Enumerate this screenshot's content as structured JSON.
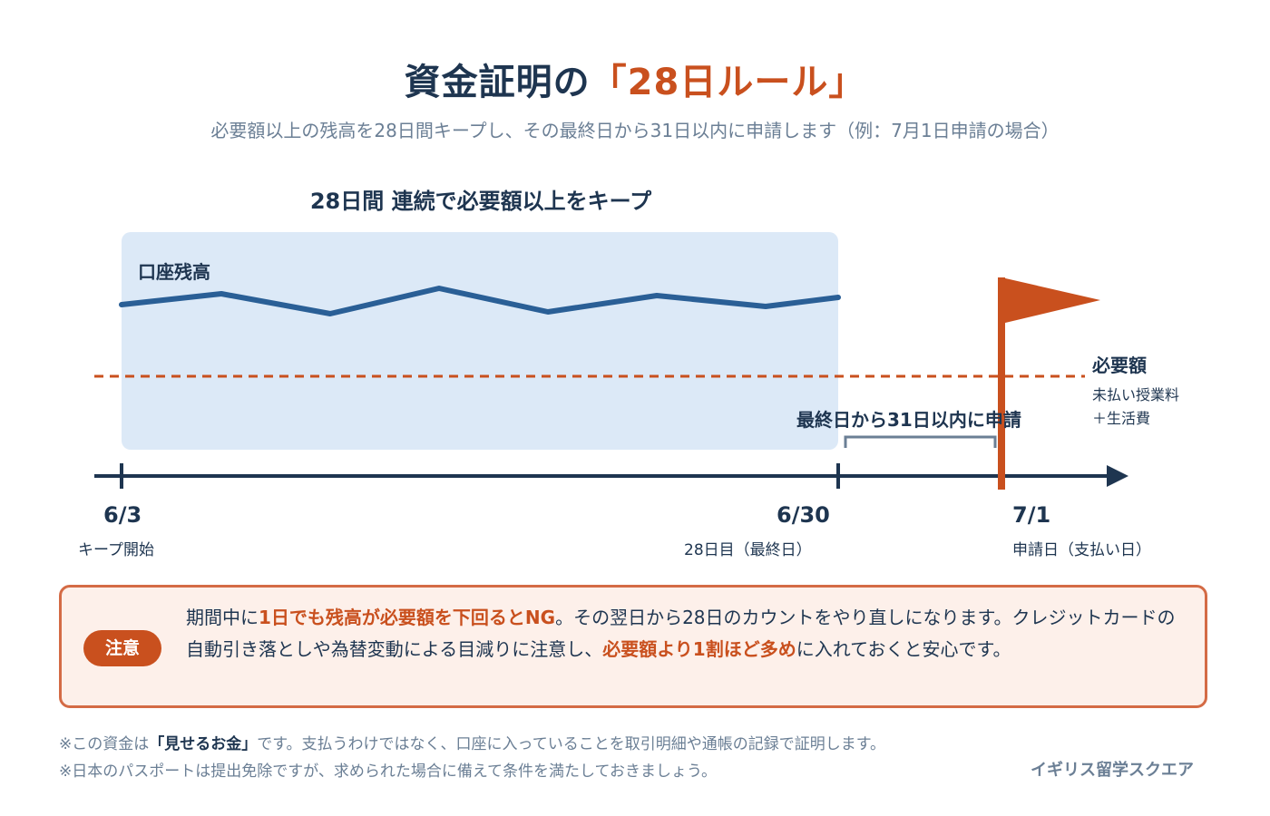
{
  "title": {
    "main": "資金証明の",
    "highlight": "「28日ルール」"
  },
  "subtitle": "必要額以上の残高を28日間キープし、その最終日から31日以内に申請します（例：7月1日申請の場合）",
  "keep_heading": "28日間 連続で必要額以上をキープ",
  "balance_label": "口座残高",
  "required": {
    "title": "必要額",
    "line1": "未払い授業料",
    "line2": "＋生活費"
  },
  "within_label": "最終日から31日以内に申請",
  "dates": {
    "start": {
      "date": "6/3",
      "label": "キープ開始"
    },
    "last": {
      "date": "6/30",
      "label": "28日目（最終日）"
    },
    "apply": {
      "date": "7/1",
      "label": "申請日（支払い日）"
    }
  },
  "note": {
    "badge": "注意",
    "t1": "期間中に",
    "e1": "1日でも残高が必要額を下回るとNG",
    "t2": "。その翌日から28日のカウントをやり直しになります。クレジットカードの自動引き落としや為替変動による目減りに注意し、",
    "e2": "必要額より1割ほど多め",
    "t3": "に入れておくと安心です。"
  },
  "footnotes": {
    "f1_pre": "※この資金は",
    "f1_em": "「見せるお金」",
    "f1_post": "です。支払うわけではなく、口座に入っていることを取引明細や通帳の記録で証明します。",
    "f2": "※日本のパスポートは提出免除ですが、求められた場合に備えて条件を満たしておきましょう。"
  },
  "brand": "イギリス留学スクエア",
  "colors": {
    "navy": "#1e3550",
    "accent": "#c9501e",
    "line": "#2a5f96",
    "keep_box": "#dce9f7",
    "note_bg": "#fdf0ea",
    "muted": "#6b7f95"
  },
  "icons": [
    "flag-icon",
    "timeline-arrow-icon"
  ]
}
